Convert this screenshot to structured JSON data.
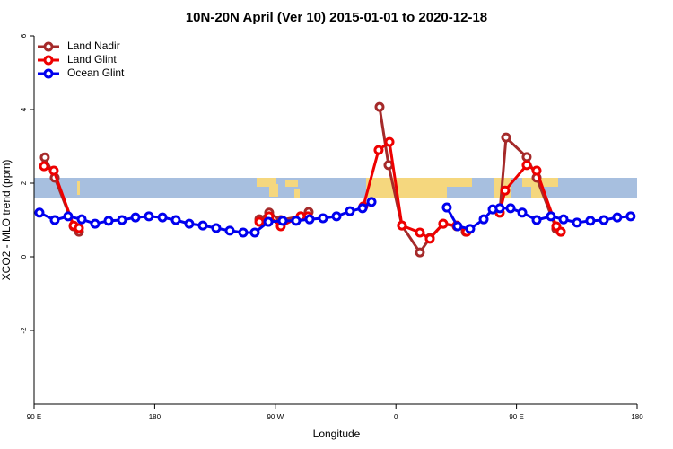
{
  "chart_data": {
    "type": "line",
    "title": "10N-20N April (Ver 10)   2015-01-01 to 2020-12-18",
    "x_label": "Longitude",
    "y_label": "XCO2 - MLO trend (ppm)",
    "xlim": [
      90,
      540
    ],
    "xticks": [
      {
        "value": 90,
        "label": "90 E"
      },
      180,
      {
        "value": 270,
        "label": "90 W"
      },
      {
        "value": 360,
        "label": "0"
      },
      {
        "value": 450,
        "label": "90 E"
      },
      {
        "value": 540,
        "label": "180"
      }
    ],
    "ylim": [
      -4,
      6
    ],
    "yticks": [
      -2,
      0,
      2,
      4,
      6
    ],
    "legend": "top-left",
    "series": [
      {
        "name": "Land Nadir",
        "color": "#a52a2a",
        "x": [
          98.0,
          105.4,
          119.5,
          123.5,
          null,
          258.1,
          265.4,
          274.1,
          288.9,
          294.9,
          null,
          347.8,
          354.5,
          364.5,
          377.9,
          385.3,
          395.3,
          405.4,
          412.1,
          null,
          437.5,
          442.2,
          457.6,
          465.0,
          479.7,
          483.1
        ],
        "values": [
          2.7,
          2.15,
          0.83,
          0.68,
          null,
          1.02,
          1.2,
          1.0,
          1.1,
          1.22,
          null,
          4.07,
          2.49,
          0.85,
          0.12,
          0.51,
          0.9,
          0.83,
          0.68,
          null,
          1.2,
          3.24,
          2.71,
          2.15,
          0.76,
          0.68
        ]
      },
      {
        "name": "Land Glint",
        "color": "#ee0000",
        "x": [
          97.4,
          104.7,
          119.5,
          123.5,
          null,
          258.1,
          265.4,
          274.1,
          288.9,
          294.3,
          null,
          335.7,
          347.1,
          355.2,
          364.5,
          377.9,
          385.3,
          395.3,
          405.4,
          412.8,
          null,
          437.5,
          441.5,
          457.6,
          465.0,
          479.7,
          483.1
        ],
        "values": [
          2.46,
          2.34,
          0.85,
          0.78,
          null,
          0.95,
          1.1,
          0.83,
          1.1,
          1.1,
          null,
          1.37,
          2.9,
          3.12,
          0.85,
          0.66,
          0.49,
          0.9,
          0.85,
          0.68,
          null,
          1.2,
          1.8,
          2.49,
          2.34,
          0.83,
          0.68
        ]
      },
      {
        "name": "Ocean Glint",
        "color": "#0000ee",
        "x": [
          94.0,
          105.4,
          115.4,
          125.5,
          135.5,
          145.6,
          155.6,
          165.7,
          175.7,
          185.8,
          195.8,
          205.8,
          215.9,
          225.9,
          236.0,
          246.0,
          254.7,
          264.8,
          275.5,
          285.5,
          295.6,
          305.6,
          315.7,
          325.7,
          335.1,
          341.8,
          null,
          398.0,
          406.0,
          415.4,
          425.5,
          432.2,
          437.5,
          445.6,
          454.3,
          465.0,
          475.7,
          485.1,
          495.1,
          505.1,
          515.2,
          525.2,
          535.2
        ],
        "values": [
          1.2,
          1.0,
          1.1,
          1.02,
          0.9,
          0.98,
          1.0,
          1.07,
          1.1,
          1.07,
          1.0,
          0.9,
          0.85,
          0.78,
          0.71,
          0.66,
          0.66,
          0.95,
          0.98,
          0.98,
          1.02,
          1.05,
          1.1,
          1.24,
          1.32,
          1.49,
          null,
          1.34,
          0.83,
          0.76,
          1.02,
          1.29,
          1.32,
          1.32,
          1.2,
          1.0,
          1.1,
          1.02,
          0.93,
          0.98,
          1.0,
          1.07,
          1.1
        ]
      }
    ]
  }
}
